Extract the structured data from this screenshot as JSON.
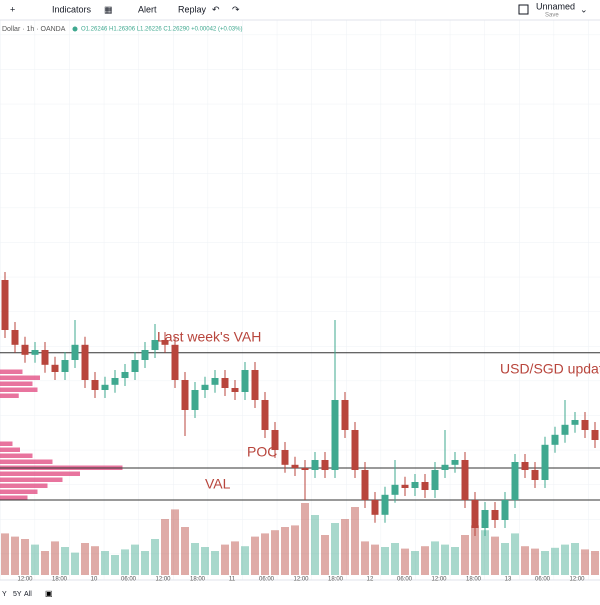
{
  "toolbar": {
    "indicators": "Indicators",
    "alert": "Alert",
    "replay": "Replay",
    "layout_name": "Unnamed",
    "layout_status": "Save"
  },
  "legend": {
    "symbol": "Dollar · 1h · OANDA",
    "ohlc": "O1.26246 H1.26306 L1.26226 C1.26290 +0.00042 (+0.03%)"
  },
  "range_buttons": [
    "Y",
    "5Y",
    "All"
  ],
  "chart_data": {
    "type": "candlestick",
    "open": [
      1.2675,
      1.26625,
      1.26588,
      1.26563,
      1.26575,
      1.26538,
      1.2652,
      1.2655,
      1.26588,
      1.265,
      1.26475,
      1.26488,
      1.26505,
      1.2652,
      1.2655,
      1.26575,
      1.266,
      1.26588,
      1.265,
      1.26425,
      1.26475,
      1.26488,
      1.26505,
      1.2648,
      1.2647,
      1.26525,
      1.2645,
      1.26375,
      1.26325,
      1.26288,
      1.2628,
      1.26275,
      1.263,
      1.26275,
      1.2645,
      1.26375,
      1.26275,
      1.262,
      1.26163,
      1.26213,
      1.26238,
      1.2623,
      1.26245,
      1.26225,
      1.26275,
      1.26288,
      1.263,
      1.262,
      1.2613,
      1.26175,
      1.2615,
      1.262,
      1.26295,
      1.26275,
      1.2625,
      1.26338,
      1.26363,
      1.26388,
      1.264,
      1.26375
    ],
    "high": [
      1.2677,
      1.26645,
      1.26608,
      1.26595,
      1.26595,
      1.26558,
      1.2657,
      1.2665,
      1.26608,
      1.2652,
      1.26508,
      1.26525,
      1.2654,
      1.2657,
      1.26595,
      1.2664,
      1.2662,
      1.26608,
      1.2652,
      1.26495,
      1.26508,
      1.26525,
      1.26525,
      1.265,
      1.26545,
      1.26545,
      1.2647,
      1.26395,
      1.26345,
      1.26308,
      1.263,
      1.2632,
      1.2632,
      1.2665,
      1.2647,
      1.26395,
      1.26295,
      1.2622,
      1.26233,
      1.263,
      1.26258,
      1.26265,
      1.26265,
      1.26295,
      1.26375,
      1.2632,
      1.2632,
      1.2622,
      1.26195,
      1.26195,
      1.2622,
      1.26315,
      1.26315,
      1.26295,
      1.26358,
      1.26383,
      1.2645,
      1.2642,
      1.2642,
      1.26395
    ],
    "low": [
      1.26605,
      1.26568,
      1.26543,
      1.26543,
      1.26518,
      1.265,
      1.265,
      1.2653,
      1.2648,
      1.26455,
      1.26455,
      1.26468,
      1.26485,
      1.265,
      1.2653,
      1.26555,
      1.26568,
      1.2648,
      1.2636,
      1.26405,
      1.26455,
      1.26468,
      1.2646,
      1.2645,
      1.2645,
      1.2643,
      1.26355,
      1.26305,
      1.26268,
      1.2626,
      1.262,
      1.26255,
      1.26255,
      1.26255,
      1.26355,
      1.26255,
      1.2618,
      1.26143,
      1.26143,
      1.26193,
      1.2621,
      1.2621,
      1.26205,
      1.26205,
      1.26255,
      1.26268,
      1.2618,
      1.2611,
      1.2611,
      1.2613,
      1.2613,
      1.2618,
      1.26255,
      1.2623,
      1.2623,
      1.26318,
      1.26343,
      1.26368,
      1.26355,
      1.2633
    ],
    "close": [
      1.26625,
      1.26588,
      1.26563,
      1.26575,
      1.26538,
      1.2652,
      1.2655,
      1.26588,
      1.265,
      1.26475,
      1.26488,
      1.26505,
      1.2652,
      1.2655,
      1.26575,
      1.266,
      1.26588,
      1.265,
      1.26425,
      1.26475,
      1.26488,
      1.26505,
      1.2648,
      1.2647,
      1.26525,
      1.2645,
      1.26375,
      1.26325,
      1.26288,
      1.2628,
      1.26275,
      1.263,
      1.26275,
      1.2645,
      1.26375,
      1.26275,
      1.262,
      1.26163,
      1.26213,
      1.26238,
      1.2623,
      1.26245,
      1.26225,
      1.26275,
      1.26288,
      1.263,
      1.262,
      1.2613,
      1.26175,
      1.2615,
      1.262,
      1.26295,
      1.26275,
      1.2625,
      1.26338,
      1.26363,
      1.26388,
      1.264,
      1.26375,
      1.2635
    ],
    "volume": [
      520,
      480,
      450,
      380,
      300,
      420,
      350,
      280,
      400,
      360,
      300,
      250,
      320,
      380,
      300,
      450,
      700,
      820,
      600,
      400,
      350,
      300,
      380,
      420,
      360,
      480,
      520,
      560,
      600,
      620,
      900,
      750,
      500,
      650,
      700,
      850,
      420,
      380,
      350,
      400,
      330,
      300,
      360,
      420,
      380,
      350,
      500,
      620,
      560,
      480,
      400,
      520,
      360,
      330,
      300,
      340,
      380,
      400,
      320,
      300
    ],
    "up_color": "#3fa88f",
    "down_color": "#b8453c",
    "ylim": [
      1.26,
      1.274
    ],
    "volume_lim": [
      0,
      1000
    ],
    "x_labels": [
      "12:00",
      "18:00",
      "10",
      "06:00",
      "12:00",
      "18:00",
      "11",
      "06:00",
      "12:00",
      "18:00",
      "12",
      "06:00",
      "12:00",
      "18:00",
      "13",
      "06:00",
      "12:00"
    ],
    "levels": [
      {
        "label": "Last week's VAH",
        "value": 1.26568
      },
      {
        "label": "POC",
        "value": 1.2628
      },
      {
        "label": "VAL",
        "value": 1.262
      }
    ],
    "annotation": "USD/SGD updat",
    "volume_profile": {
      "color": "#e0457e",
      "prices": [
        1.2652,
        1.26505,
        1.2649,
        1.26475,
        1.2646,
        1.2634,
        1.26325,
        1.2631,
        1.26295,
        1.2628,
        1.26265,
        1.2625,
        1.26235,
        1.2622,
        1.26205
      ],
      "values": [
        180,
        320,
        260,
        300,
        150,
        100,
        160,
        260,
        420,
        980,
        640,
        500,
        380,
        300,
        220
      ],
      "xlim": [
        0,
        1000
      ]
    }
  }
}
